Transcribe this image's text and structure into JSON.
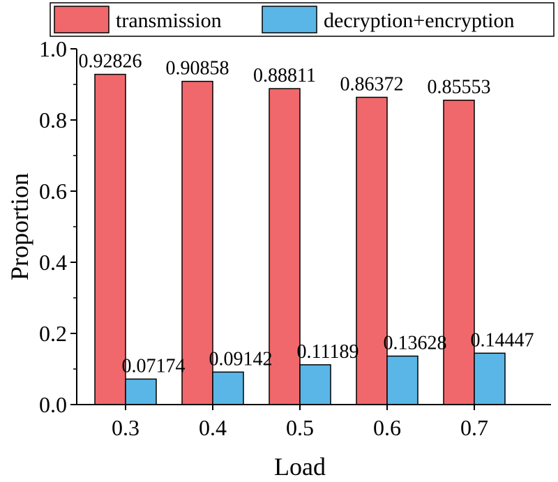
{
  "chart_data": {
    "type": "bar",
    "title": "",
    "xlabel": "Load",
    "ylabel": "Proportion",
    "categories": [
      "0.3",
      "0.4",
      "0.5",
      "0.6",
      "0.7"
    ],
    "ylim": [
      0,
      1.0
    ],
    "yticks": [
      "0.0",
      "0.2",
      "0.4",
      "0.6",
      "0.8",
      "1.0"
    ],
    "grid": false,
    "legend_position": "top",
    "series": [
      {
        "name": "transmission",
        "color": "#F0686B",
        "values": [
          0.92826,
          0.90858,
          0.88811,
          0.86372,
          0.85553
        ],
        "labels": [
          "0.92826",
          "0.90858",
          "0.88811",
          "0.86372",
          "0.85553"
        ]
      },
      {
        "name": "decryption+encryption",
        "color": "#5AB6E6",
        "values": [
          0.07174,
          0.09142,
          0.11189,
          0.13628,
          0.14447
        ],
        "labels": [
          "0.07174",
          "0.09142",
          "0.11189",
          "0.13628",
          "0.14447"
        ]
      }
    ]
  }
}
